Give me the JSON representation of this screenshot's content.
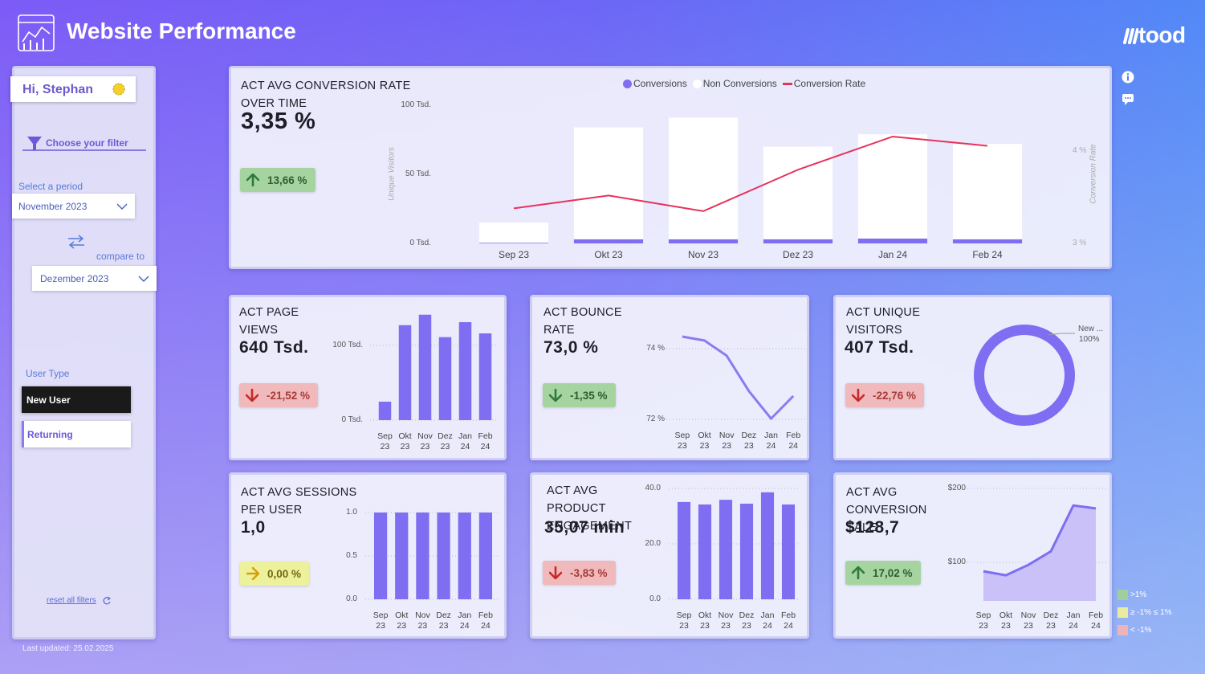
{
  "header": {
    "title": "Website Performance",
    "brand": "tood"
  },
  "sidebar": {
    "greeting": "Hi, Stephan",
    "filter_heading": "Choose your filter",
    "period_label": "Select a period",
    "period": "November 2023",
    "compare_label": "compare to",
    "compare": "Dezember 2023",
    "user_type_label": "User Type",
    "user_types": [
      "New User",
      "Returning"
    ],
    "reset": "reset all filters",
    "updated": "Last updated: 25.02.2025"
  },
  "kpi_legend": [
    {
      "label": ">1%",
      "color": "#9fcf9a"
    },
    {
      "label": "≥ -1% ≤ 1%",
      "color": "#e8ec9c"
    },
    {
      "label": "< -1%",
      "color": "#eab4b8"
    }
  ],
  "charts": [
    {
      "type": "combo",
      "stacked": true,
      "title": "ACT AVG CONVERSION RATE OVER TIME",
      "kpi": "3,35 %",
      "delta": "13,66 %",
      "trend": "up",
      "status": "good",
      "y_label": "Unique Visitors",
      "y2_label": "Conversion Rate",
      "categories": [
        "Sep 23",
        "Okt 23",
        "Nov 23",
        "Dez 23",
        "Jan 24",
        "Feb 24"
      ],
      "series": [
        {
          "name": "Conversions",
          "color": "#7f6df2",
          "values": [
            0.5,
            3,
            3,
            3,
            3.5,
            3
          ]
        },
        {
          "name": "Non Conversions",
          "color": "#ffffff",
          "values": [
            14.5,
            81,
            88,
            67,
            75.5,
            69
          ]
        },
        {
          "name": "Conversion Rate",
          "color": "#e8315b",
          "axis": "y2",
          "values": [
            3.38,
            3.52,
            3.35,
            3.8,
            4.16,
            4.06
          ]
        }
      ],
      "ylim": [
        0,
        100
      ],
      "yticks": [
        {
          "value": 0,
          "label": "0 Tsd."
        },
        {
          "value": 50,
          "label": "50 Tsd."
        },
        {
          "value": 100,
          "label": "100 Tsd."
        }
      ],
      "y2lim": [
        3,
        4.5
      ],
      "y2ticks": [
        {
          "value": 3,
          "label": "3 %"
        },
        {
          "value": 4,
          "label": "4 %"
        }
      ],
      "legend": "top"
    },
    {
      "type": "bar",
      "title": "ACT PAGE VIEWS",
      "kpi": "640 Tsd.",
      "delta": "-21,52 %",
      "trend": "down",
      "status": "bad",
      "categories": [
        "Sep 23",
        "Okt 23",
        "Nov 23",
        "Dez 23",
        "Jan 24",
        "Feb 24"
      ],
      "values": [
        24.7,
        127,
        141,
        111,
        131,
        116
      ],
      "color": "#7f6df2",
      "ylim": [
        0,
        145
      ],
      "yticks": [
        {
          "value": 0,
          "label": "0 Tsd."
        },
        {
          "value": 100,
          "label": "100 Tsd."
        }
      ],
      "grid": true
    },
    {
      "type": "line",
      "title": "ACT BOUNCE RATE",
      "kpi": "73,0 %",
      "delta": "-1,35 %",
      "trend": "down",
      "status": "good",
      "categories": [
        "Sep 23",
        "Okt 23",
        "Nov 23",
        "Dez 23",
        "Jan 24",
        "Feb 24"
      ],
      "values": [
        74.34,
        74.23,
        73.8,
        72.8,
        72.02,
        72.66
      ],
      "color": "#8a7cf0",
      "ylim": [
        71.9,
        74.4
      ],
      "yticks": [
        {
          "value": 72,
          "label": "72 %"
        },
        {
          "value": 74,
          "label": "74 %"
        }
      ],
      "grid": true
    },
    {
      "type": "donut",
      "title": "ACT UNIQUE VISITORS",
      "kpi": "407 Tsd.",
      "delta": "-22,76 %",
      "trend": "down",
      "status": "bad",
      "categories": [
        "New ..."
      ],
      "values": [
        100
      ],
      "value_labels": [
        "100%"
      ],
      "colors": [
        "#7f6df2"
      ]
    },
    {
      "type": "bar",
      "title": "ACT AVG SESSIONS PER USER",
      "kpi": "1,0",
      "delta": "0,00 %",
      "trend": "flat",
      "status": "neutral",
      "categories": [
        "Sep 23",
        "Okt 23",
        "Nov 23",
        "Dez 23",
        "Jan 24",
        "Feb 24"
      ],
      "values": [
        1,
        1,
        1,
        1,
        1,
        1
      ],
      "color": "#7f6df2",
      "ylim": [
        0,
        1
      ],
      "yticks": [
        {
          "value": 0,
          "label": "0.0"
        },
        {
          "value": 0.5,
          "label": "0.5"
        },
        {
          "value": 1,
          "label": "1.0"
        }
      ],
      "grid": true
    },
    {
      "type": "bar",
      "title": "ACT AVG PRODUCT ENGAGEMENT",
      "kpi": "35,07 min",
      "delta": "-3,83 %",
      "trend": "down",
      "status": "bad",
      "categories": [
        "Sep 23",
        "Okt 23",
        "Nov 23",
        "Dez 23",
        "Jan 24",
        "Feb 24"
      ],
      "values": [
        35.1,
        34.2,
        35.9,
        34.5,
        38.6,
        34.2
      ],
      "color": "#7f6df2",
      "ylim": [
        0,
        40
      ],
      "yticks": [
        {
          "value": 0,
          "label": "0.0"
        },
        {
          "value": 20,
          "label": "20.0"
        },
        {
          "value": 40,
          "label": "40.0"
        }
      ],
      "grid": true
    },
    {
      "type": "area",
      "title": "ACT AVG CONVERSION SALE",
      "kpi": "$128,7",
      "delta": "17,02 %",
      "trend": "up",
      "status": "good",
      "categories": [
        "Sep 23",
        "Okt 23",
        "Nov 23",
        "Dez 23",
        "Jan 24",
        "Feb 24"
      ],
      "values": [
        88,
        82.6,
        96.7,
        115,
        177,
        173
      ],
      "color": "#7f6df2",
      "ylim": [
        48,
        200
      ],
      "yticks": [
        {
          "value": 100,
          "label": "$100"
        },
        {
          "value": 200,
          "label": "$200"
        }
      ],
      "grid": true
    }
  ]
}
